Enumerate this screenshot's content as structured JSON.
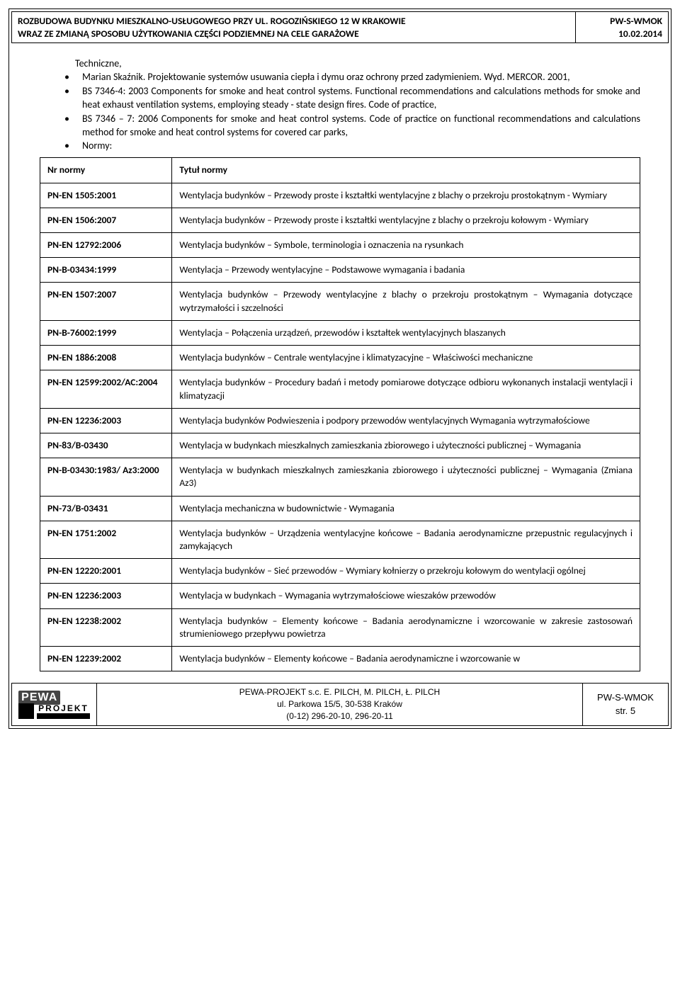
{
  "header": {
    "title_line1": "ROZBUDOWA BUDYNKU MIESZKALNO-USŁUGOWEGO PRZY UL. ROGOZIŃSKIEGO 12 W KRAKOWIE",
    "title_line2": "WRAZ ZE ZMIANĄ SPOSOBU UŻYTKOWANIA CZĘŚCI PODZIEMNEJ NA CELE GARAŻOWE",
    "doc_code": "PW-S-WMOK",
    "doc_date": "10.02.2014"
  },
  "body": {
    "pre_text": "Techniczne,",
    "bullets": [
      "Marian Skaźnik. Projektowanie systemów usuwania ciepła i dymu oraz ochrony przed zadymieniem. Wyd. MERCOR. 2001,",
      "BS 7346-4: 2003 Components for smoke and heat control systems. Functional recommendations and calculations methods for smoke and heat exhaust ventilation systems, employing steady - state design fires. Code of practice,",
      "BS 7346 – 7: 2006 Components for smoke and heat control systems. Code of practice on functional recommendations and calculations method for smoke and heat control systems for covered car parks,",
      "Normy:"
    ]
  },
  "table": {
    "header": {
      "col1": "Nr normy",
      "col2": "Tytuł normy"
    },
    "rows": [
      {
        "c1": "PN-EN 1505:2001",
        "c2": "Wentylacja budynków – Przewody proste i kształtki wentylacyjne z blachy o przekroju prostokątnym - Wymiary"
      },
      {
        "c1": "PN-EN 1506:2007",
        "c2": "Wentylacja budynków – Przewody proste i kształtki wentylacyjne z blachy o przekroju kołowym - Wymiary"
      },
      {
        "c1": "PN-EN 12792:2006",
        "c2": "Wentylacja budynków – Symbole, terminologia i oznaczenia na rysunkach"
      },
      {
        "c1": "PN-B-03434:1999",
        "c2": "Wentylacja – Przewody wentylacyjne – Podstawowe wymagania i badania"
      },
      {
        "c1": "PN-EN 1507:2007",
        "c2": "Wentylacja budynków – Przewody wentylacyjne z blachy o przekroju prostokątnym – Wymagania dotyczące wytrzymałości i szczelności"
      },
      {
        "c1": "PN-B-76002:1999",
        "c2": "Wentylacja – Połączenia urządzeń, przewodów i kształtek wentylacyjnych blaszanych"
      },
      {
        "c1": "PN-EN 1886:2008",
        "c2": "Wentylacja budynków – Centrale wentylacyjne i klimatyzacyjne – Właściwości mechaniczne"
      },
      {
        "c1": "PN-EN 12599:2002/AC:2004",
        "c2": "Wentylacja budynków – Procedury badań i metody pomiarowe dotyczące odbioru wykonanych instalacji wentylacji i klimatyzacji"
      },
      {
        "c1": "PN-EN 12236:2003",
        "c2": "Wentylacja budynków Podwieszenia i podpory przewodów wentylacyjnych Wymagania wytrzymałościowe"
      },
      {
        "c1": "PN-83/B-03430",
        "c2": "Wentylacja w budynkach mieszkalnych zamieszkania zbiorowego i użyteczności publicznej – Wymagania"
      },
      {
        "c1": "PN-B-03430:1983/ Az3:2000",
        "c2": "Wentylacja w budynkach mieszkalnych zamieszkania zbiorowego i użyteczności publicznej – Wymagania (Zmiana Az3)"
      },
      {
        "c1": "PN-73/B-03431",
        "c2": "Wentylacja mechaniczna w budownictwie - Wymagania"
      },
      {
        "c1": "PN-EN 1751:2002",
        "c2": "Wentylacja budynków – Urządzenia wentylacyjne końcowe – Badania aerodynamiczne przepustnic regulacyjnych i zamykających"
      },
      {
        "c1": "PN-EN 12220:2001",
        "c2": "Wentylacja budynków – Sieć przewodów – Wymiary kołnierzy o przekroju kołowym do wentylacji ogólnej"
      },
      {
        "c1": "PN-EN 12236:2003",
        "c2": "Wentylacja w budynkach – Wymagania wytrzymałościowe wieszaków przewodów"
      },
      {
        "c1": "PN-EN 12238:2002",
        "c2": "Wentylacja budynków – Elementy końcowe – Badania aerodynamiczne i wzorcowanie w zakresie zastosowań strumieniowego przepływu powietrza"
      },
      {
        "c1": "PN-EN 12239:2002",
        "c2": "Wentylacja budynków – Elementy końcowe – Badania aerodynamiczne i wzorcowanie w"
      }
    ]
  },
  "footer": {
    "logo_top": "PEWA",
    "logo_bottom": "PROJEKT",
    "line1": "PEWA-PROJEKT s.c. E. PILCH, M. PILCH, Ł. PILCH",
    "line2": "ul. Parkowa 15/5, 30-538 Kraków",
    "line3": "(0-12) 296-20-10, 296-20-11",
    "right_code": "PW-S-WMOK",
    "right_page": "str. 5"
  }
}
